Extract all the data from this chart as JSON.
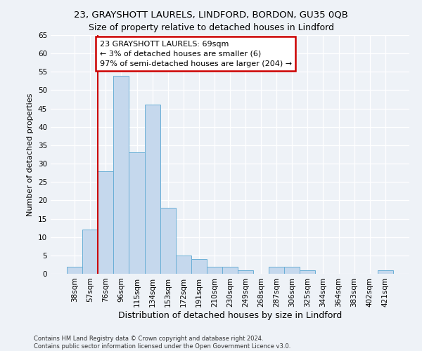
{
  "title": "23, GRAYSHOTT LAURELS, LINDFORD, BORDON, GU35 0QB",
  "subtitle": "Size of property relative to detached houses in Lindford",
  "xlabel": "Distribution of detached houses by size in Lindford",
  "ylabel": "Number of detached properties",
  "categories": [
    "38sqm",
    "57sqm",
    "76sqm",
    "96sqm",
    "115sqm",
    "134sqm",
    "153sqm",
    "172sqm",
    "191sqm",
    "210sqm",
    "230sqm",
    "249sqm",
    "268sqm",
    "287sqm",
    "306sqm",
    "325sqm",
    "344sqm",
    "364sqm",
    "383sqm",
    "402sqm",
    "421sqm"
  ],
  "values": [
    2,
    12,
    28,
    54,
    33,
    46,
    18,
    5,
    4,
    2,
    2,
    1,
    0,
    2,
    2,
    1,
    0,
    0,
    0,
    0,
    1
  ],
  "bar_color": "#c5d8ed",
  "bar_edge_color": "#6aafd6",
  "annotation_label": "23 GRAYSHOTT LAURELS: 69sqm",
  "annotation_line1": "← 3% of detached houses are smaller (6)",
  "annotation_line2": "97% of semi-detached houses are larger (204) →",
  "annotation_box_color": "#ffffff",
  "annotation_box_edge": "#cc0000",
  "vline_color": "#cc0000",
  "ylim": [
    0,
    65
  ],
  "yticks": [
    0,
    5,
    10,
    15,
    20,
    25,
    30,
    35,
    40,
    45,
    50,
    55,
    60,
    65
  ],
  "background_color": "#eef2f7",
  "footer_line1": "Contains HM Land Registry data © Crown copyright and database right 2024.",
  "footer_line2": "Contains public sector information licensed under the Open Government Licence v3.0.",
  "title_fontsize": 9.5,
  "subtitle_fontsize": 9,
  "xlabel_fontsize": 9,
  "ylabel_fontsize": 8,
  "tick_fontsize": 7.5,
  "annotation_fontsize": 8,
  "footer_fontsize": 6
}
